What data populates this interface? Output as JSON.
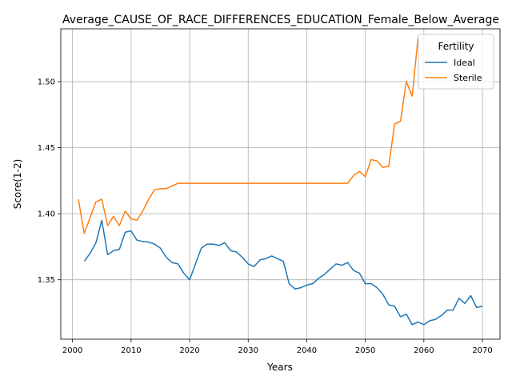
{
  "chart_data": {
    "type": "line",
    "title": "Average_CAUSE_OF_RACE_DIFFERENCES_EDUCATION_Female_Below_Average",
    "xlabel": "Years",
    "ylabel": "Score(1-2)",
    "xlim": [
      1998,
      2073
    ],
    "ylim": [
      1.305,
      1.54
    ],
    "xticks": [
      2000,
      2010,
      2020,
      2030,
      2040,
      2050,
      2060,
      2070
    ],
    "yticks": [
      1.35,
      1.4,
      1.45,
      1.5
    ],
    "xtick_labels": [
      "2000",
      "2010",
      "2020",
      "2030",
      "2040",
      "2050",
      "2060",
      "2070"
    ],
    "ytick_labels": [
      "1.35",
      "1.40",
      "1.45",
      "1.50"
    ],
    "grid": true,
    "legend": {
      "title": "Fertility",
      "placement": "top-right"
    },
    "series": [
      {
        "name": "Ideal",
        "color": "#1f77b4",
        "x": [
          2002,
          2003,
          2004,
          2005,
          2006,
          2007,
          2008,
          2009,
          2010,
          2011,
          2012,
          2013,
          2014,
          2015,
          2016,
          2017,
          2018,
          2019,
          2020,
          2021,
          2022,
          2023,
          2024,
          2025,
          2026,
          2027,
          2028,
          2029,
          2030,
          2031,
          2032,
          2033,
          2034,
          2035,
          2036,
          2037,
          2038,
          2039,
          2040,
          2041,
          2042,
          2043,
          2044,
          2045,
          2046,
          2047,
          2048,
          2049,
          2050,
          2051,
          2052,
          2053,
          2054,
          2055,
          2056,
          2057,
          2058,
          2059,
          2060,
          2061,
          2062,
          2063,
          2064,
          2065,
          2066,
          2067,
          2068,
          2069,
          2070
        ],
        "values": [
          1.364,
          1.37,
          1.378,
          1.395,
          1.369,
          1.372,
          1.373,
          1.386,
          1.387,
          1.38,
          1.379,
          1.3785,
          1.377,
          1.374,
          1.367,
          1.363,
          1.362,
          1.355,
          1.35,
          1.362,
          1.374,
          1.377,
          1.377,
          1.376,
          1.378,
          1.372,
          1.371,
          1.367,
          1.362,
          1.36,
          1.365,
          1.366,
          1.368,
          1.366,
          1.364,
          1.347,
          1.343,
          1.344,
          1.346,
          1.347,
          1.351,
          1.354,
          1.358,
          1.362,
          1.361,
          1.363,
          1.357,
          1.355,
          1.347,
          1.347,
          1.344,
          1.339,
          1.331,
          1.33,
          1.322,
          1.324,
          1.316,
          1.318,
          1.316,
          1.319,
          1.32,
          1.323,
          1.327,
          1.327,
          1.336,
          1.332,
          1.338,
          1.329,
          1.33
        ]
      },
      {
        "name": "Sterile",
        "color": "#ff7f0e",
        "x": [
          2001,
          2002,
          2003,
          2004,
          2005,
          2006,
          2007,
          2008,
          2009,
          2010,
          2011,
          2012,
          2013,
          2014,
          2015,
          2016,
          2017,
          2018,
          2019,
          2020,
          2021,
          2022,
          2023,
          2024,
          2025,
          2026,
          2027,
          2028,
          2029,
          2030,
          2031,
          2032,
          2033,
          2034,
          2035,
          2036,
          2037,
          2038,
          2039,
          2040,
          2041,
          2042,
          2043,
          2044,
          2045,
          2046,
          2047,
          2048,
          2049,
          2050,
          2051,
          2052,
          2053,
          2054,
          2055,
          2056,
          2057,
          2058,
          2059
        ],
        "values": [
          1.411,
          1.385,
          1.397,
          1.409,
          1.411,
          1.391,
          1.398,
          1.391,
          1.402,
          1.396,
          1.395,
          1.402,
          1.411,
          1.418,
          1.419,
          1.419,
          1.421,
          1.423,
          1.423,
          1.423,
          1.423,
          1.423,
          1.423,
          1.423,
          1.423,
          1.423,
          1.423,
          1.423,
          1.423,
          1.423,
          1.423,
          1.423,
          1.423,
          1.423,
          1.423,
          1.423,
          1.423,
          1.423,
          1.423,
          1.423,
          1.423,
          1.423,
          1.423,
          1.423,
          1.423,
          1.423,
          1.423,
          1.429,
          1.432,
          1.428,
          1.441,
          1.44,
          1.435,
          1.436,
          1.468,
          1.47,
          1.5,
          1.489,
          1.533
        ]
      }
    ]
  }
}
